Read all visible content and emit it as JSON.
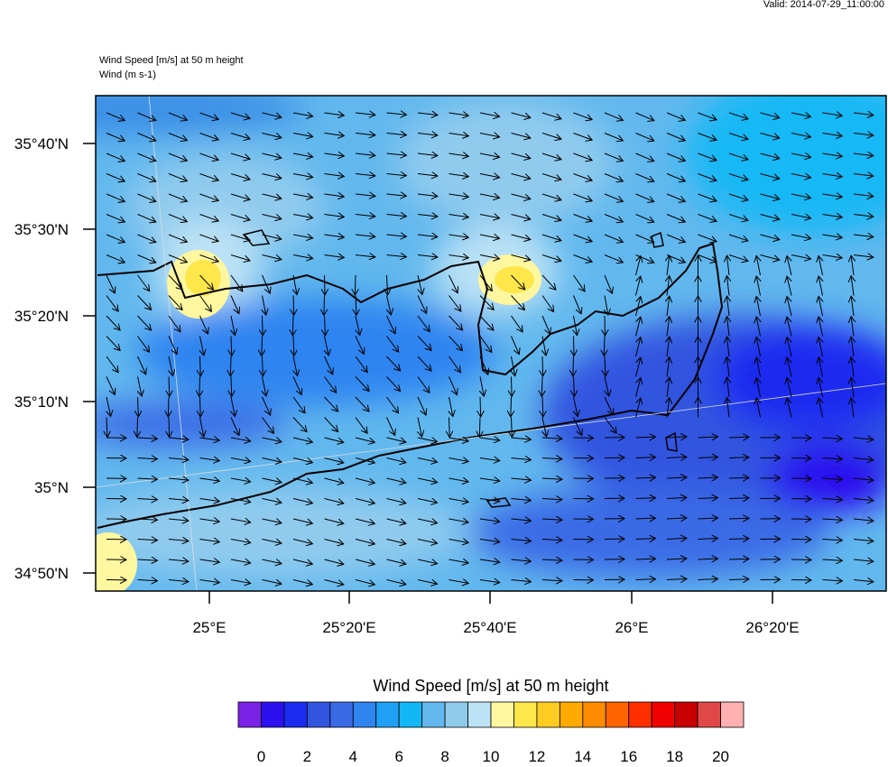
{
  "header": {
    "valid": "Valid: 2014-07-29_11:00:00"
  },
  "plot": {
    "title": "Wind Speed [m/s] at 50 m height",
    "subtitle": "Wind   (m s-1)",
    "lat_labels": [
      "35°40'N",
      "35°30'N",
      "35°20'N",
      "35°10'N",
      "35°N",
      "34°50'N"
    ],
    "lon_labels": [
      "25°E",
      "25°20'E",
      "25°40'E",
      "26°E",
      "26°20'E"
    ]
  },
  "colorbar": {
    "title": "Wind Speed [m/s] at 50 m height",
    "colors": [
      "#7a22e6",
      "#2c10ee",
      "#1a2cf0",
      "#3255e0",
      "#3a6ae6",
      "#2f84f0",
      "#1fa0f5",
      "#12b8f5",
      "#62b8ee",
      "#90cbee",
      "#bce2f5",
      "#fff7a0",
      "#ffe64a",
      "#ffcc22",
      "#ffaa00",
      "#ff8c00",
      "#ff6400",
      "#ff2e00",
      "#f00000",
      "#c80000",
      "#e04848",
      "#ffb0b0"
    ],
    "labels": [
      0,
      2,
      4,
      6,
      8,
      10,
      12,
      14,
      16,
      18,
      20
    ]
  }
}
